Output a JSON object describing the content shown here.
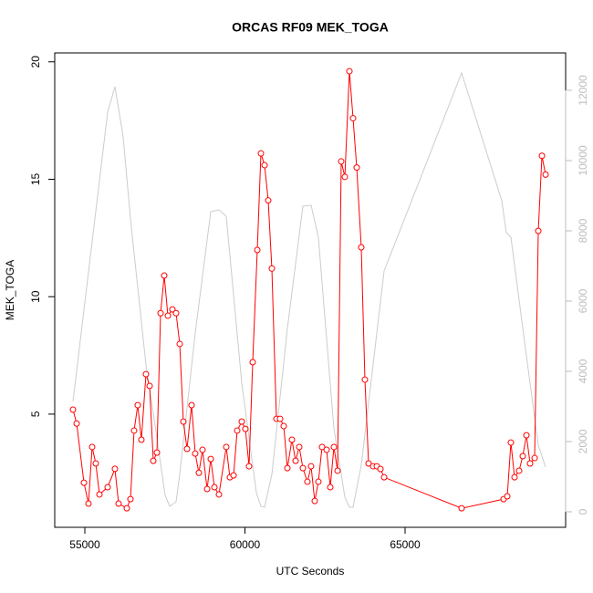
{
  "chart_data": {
    "type": "line",
    "title": "ORCAS RF09 MEK_TOGA",
    "x_label": "UTC Seconds",
    "y_label": "MEK_TOGA",
    "xlim": [
      54060,
      70014
    ],
    "xticks": [
      55000,
      60000,
      65000
    ],
    "ylim": [
      0.18,
      20.38
    ],
    "yticks": [
      5,
      10,
      15,
      20
    ],
    "y2lim": [
      -442,
      13065
    ],
    "y2ticks": [
      0,
      2000,
      4000,
      6000,
      8000,
      10000,
      12000
    ],
    "series": [
      {
        "name": "MEK_TOGA",
        "color": "#ff0000",
        "markers": true,
        "x": [
          54630,
          54744,
          54972,
          55114,
          55228,
          55342,
          55456,
          55712,
          55940,
          56054,
          56311,
          56425,
          56538,
          56652,
          56766,
          56909,
          57023,
          57137,
          57251,
          57365,
          57479,
          57593,
          57735,
          57849,
          57963,
          58077,
          58191,
          58333,
          58447,
          58561,
          58675,
          58818,
          58932,
          59046,
          59188,
          59416,
          59530,
          59644,
          59758,
          59900,
          60014,
          60128,
          60242,
          60385,
          60499,
          60613,
          60726,
          60840,
          60983,
          61097,
          61211,
          61325,
          61467,
          61581,
          61695,
          61809,
          61951,
          62065,
          62179,
          62293,
          62407,
          62550,
          62664,
          62778,
          62892,
          63006,
          63120,
          63262,
          63376,
          63490,
          63632,
          63746,
          63860,
          64003,
          64117,
          64231,
          64345,
          66766,
          68077,
          68191,
          68305,
          68419,
          68561,
          68675,
          68789,
          68903,
          69046,
          69160,
          69274,
          69388
        ],
        "values": [
          5.19,
          4.6,
          2.08,
          1.19,
          3.6,
          2.9,
          1.58,
          1.89,
          2.67,
          1.19,
          0.99,
          1.38,
          4.3,
          5.38,
          3.91,
          6.7,
          6.2,
          3.01,
          3.36,
          9.3,
          10.9,
          9.19,
          9.46,
          9.3,
          7.99,
          4.68,
          3.52,
          5.38,
          3.32,
          2.5,
          3.48,
          1.81,
          3.09,
          1.89,
          1.58,
          3.6,
          2.31,
          2.39,
          4.3,
          4.68,
          4.37,
          2.78,
          7.21,
          11.99,
          16.1,
          15.6,
          14.1,
          11.2,
          4.8,
          4.8,
          4.49,
          2.7,
          3.91,
          3.01,
          3.6,
          2.7,
          2.12,
          2.78,
          1.3,
          2.12,
          3.6,
          3.48,
          1.89,
          3.6,
          2.59,
          15.76,
          15.1,
          19.6,
          17.6,
          15.5,
          12.1,
          6.47,
          2.9,
          2.78,
          2.78,
          2.66,
          2.31,
          0.99,
          1.38,
          1.5,
          3.79,
          2.31,
          2.59,
          3.21,
          4.1,
          2.9,
          3.13,
          12.8,
          16.0,
          15.2
        ]
      },
      {
        "color": "#cccccc",
        "axis": "y2",
        "markers": false,
        "x": [
          54630,
          55712,
          55940,
          56197,
          56425,
          56909,
          57251,
          57507,
          57650,
          57849,
          57963,
          58447,
          58932,
          59188,
          59416,
          59900,
          60356,
          60499,
          60613,
          60840,
          61325,
          61809,
          62065,
          62293,
          62778,
          63120,
          63262,
          63376,
          63632,
          64345,
          66766,
          68020,
          68162,
          68305,
          68789,
          69160,
          69388
        ],
        "values": [
          3143,
          11377,
          12104,
          10675,
          8338,
          4182,
          2104,
          468,
          156,
          286,
          1065,
          5091,
          8545,
          8597,
          8416,
          3662,
          545,
          156,
          130,
          1065,
          5221,
          8701,
          8727,
          7818,
          2364,
          416,
          130,
          130,
          1325,
          6857,
          12494,
          8857,
          7948,
          7818,
          4442,
          1896,
          1273
        ]
      }
    ]
  }
}
